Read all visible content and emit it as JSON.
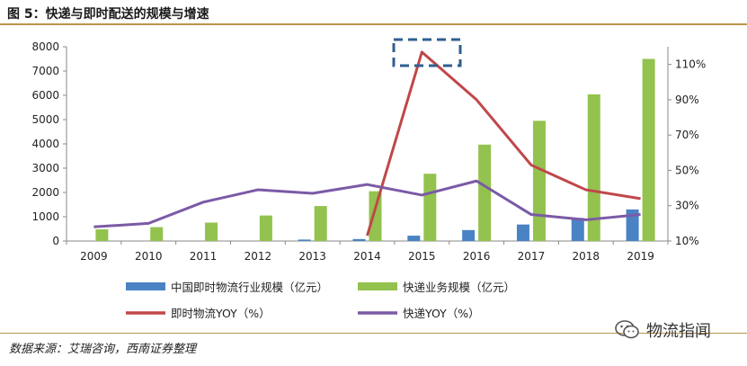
{
  "figure_title": "图 5：快递与即时配送的规模与增速",
  "source_note": "数据来源：艾瑞咨询，西南证券整理",
  "watermark": "物流指闻",
  "watermark_icon": "wechat-icon",
  "colors": {
    "blue": "#4a83c4",
    "green": "#93c24e",
    "red": "#c0474a",
    "purple": "#7b5aa6",
    "dash_box": "#2f5f8f",
    "rule": "#b8964a"
  },
  "chart_data": {
    "type": "bar",
    "categories": [
      "2009",
      "2010",
      "2011",
      "2012",
      "2013",
      "2014",
      "2015",
      "2016",
      "2017",
      "2018",
      "2019"
    ],
    "y_left": {
      "ticks": [
        "0",
        "1000",
        "2000",
        "3000",
        "4000",
        "5000",
        "6000",
        "7000",
        "8000"
      ],
      "range": [
        0,
        8000
      ]
    },
    "y_right": {
      "ticks": [
        "10%",
        "30%",
        "50%",
        "70%",
        "90%",
        "110%"
      ],
      "range": [
        10,
        120
      ],
      "unit": "%"
    },
    "series": [
      {
        "name": "中国即时物流行业规模（亿元）",
        "kind": "bar",
        "axis": "left",
        "values": [
          null,
          null,
          null,
          null,
          60,
          80,
          220,
          450,
          680,
          950,
          1300
        ]
      },
      {
        "name": "快递业务规模（亿元）",
        "kind": "bar",
        "axis": "left",
        "values": [
          480,
          570,
          760,
          1050,
          1440,
          2050,
          2770,
          3970,
          4950,
          6040,
          7500
        ]
      },
      {
        "name": "即时物流YOY（%）",
        "kind": "line",
        "axis": "right",
        "values": [
          null,
          null,
          null,
          null,
          null,
          13,
          117,
          90,
          53,
          39,
          34
        ]
      },
      {
        "name": "快递YOY（%）",
        "kind": "line",
        "axis": "right",
        "values": [
          18,
          20,
          32,
          39,
          37,
          42,
          36,
          44,
          25,
          22,
          25
        ]
      }
    ],
    "annotation": "dashed-box-around-2015-peak",
    "grid": false,
    "legend": "bottom"
  }
}
